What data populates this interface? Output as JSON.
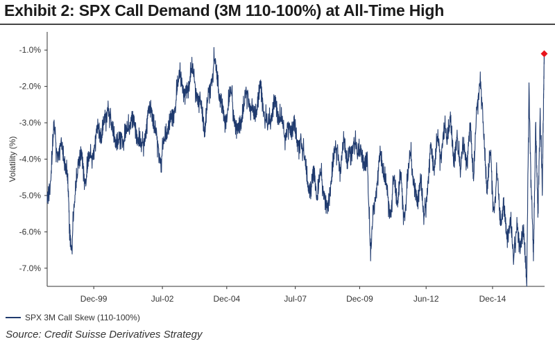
{
  "title": "Exhibit 2: SPX Call Demand (3M 110-100%) at All-Time High",
  "source": "Source: Credit Suisse Derivatives Strategy",
  "colors": {
    "series": "#1f3a6e",
    "marker": "#e8141c",
    "axis": "#333333"
  },
  "chart_data": {
    "type": "line",
    "ylabel": "Volatility (%)",
    "ylim": [
      -7.5,
      -0.5
    ],
    "yticks": [
      -1.0,
      -2.0,
      -3.0,
      -4.0,
      -5.0,
      -6.0,
      -7.0
    ],
    "ytick_labels": [
      "-1.0%",
      "-2.0%",
      "-3.0%",
      "-4.0%",
      "-5.0%",
      "-6.0%",
      "-7.0%"
    ],
    "xlim": [
      "1998-03-01",
      "2016-11-15"
    ],
    "xticks": [
      "1999-12-01",
      "2002-07-01",
      "2004-12-01",
      "2007-07-01",
      "2009-12-01",
      "2012-06-01",
      "2014-12-01"
    ],
    "xtick_labels": [
      "Dec-99",
      "Jul-02",
      "Dec-04",
      "Jul-07",
      "Dec-09",
      "Jun-12",
      "Dec-14"
    ],
    "grid": false,
    "legend_position": "bottom-left",
    "series": [
      {
        "name": "SPX 3M Call Skew (110-100%)",
        "points": [
          [
            "1998-03-01",
            -5.2
          ],
          [
            "1998-04-15",
            -4.6
          ],
          [
            "1998-06-01",
            -3.2
          ],
          [
            "1998-07-15",
            -3.8
          ],
          [
            "1998-09-01",
            -3.6
          ],
          [
            "1998-10-15",
            -4.0
          ],
          [
            "1998-12-01",
            -4.3
          ],
          [
            "1999-01-01",
            -5.8
          ],
          [
            "1999-02-01",
            -6.4
          ],
          [
            "1999-03-15",
            -5.2
          ],
          [
            "1999-05-01",
            -4.0
          ],
          [
            "1999-06-15",
            -3.9
          ],
          [
            "1999-08-01",
            -4.6
          ],
          [
            "1999-09-15",
            -4.2
          ],
          [
            "1999-11-01",
            -3.9
          ],
          [
            "1999-12-15",
            -3.6
          ],
          [
            "2000-02-01",
            -3.1
          ],
          [
            "2000-03-15",
            -3.4
          ],
          [
            "2000-05-01",
            -3.0
          ],
          [
            "2000-06-15",
            -2.4
          ],
          [
            "2000-08-01",
            -3.2
          ],
          [
            "2000-09-15",
            -3.4
          ],
          [
            "2000-11-01",
            -3.6
          ],
          [
            "2000-12-15",
            -3.3
          ],
          [
            "2001-02-01",
            -3.5
          ],
          [
            "2001-03-15",
            -3.2
          ],
          [
            "2001-05-01",
            -2.8
          ],
          [
            "2001-06-15",
            -3.1
          ],
          [
            "2001-08-01",
            -3.4
          ],
          [
            "2001-09-15",
            -3.8
          ],
          [
            "2001-11-01",
            -3.3
          ],
          [
            "2001-12-15",
            -2.8
          ],
          [
            "2002-02-01",
            -2.6
          ],
          [
            "2002-03-15",
            -3.2
          ],
          [
            "2002-05-01",
            -3.6
          ],
          [
            "2002-06-15",
            -4.0
          ],
          [
            "2002-08-01",
            -3.5
          ],
          [
            "2002-09-15",
            -3.1
          ],
          [
            "2002-11-01",
            -2.9
          ],
          [
            "2002-12-15",
            -2.6
          ],
          [
            "2003-02-01",
            -2.0
          ],
          [
            "2003-03-15",
            -1.6
          ],
          [
            "2003-05-01",
            -2.3
          ],
          [
            "2003-06-15",
            -2.1
          ],
          [
            "2003-08-01",
            -1.5
          ],
          [
            "2003-09-15",
            -1.9
          ],
          [
            "2003-11-01",
            -2.2
          ],
          [
            "2003-12-15",
            -2.6
          ],
          [
            "2004-02-01",
            -3.2
          ],
          [
            "2004-03-15",
            -2.4
          ],
          [
            "2004-05-01",
            -1.8
          ],
          [
            "2004-06-15",
            -1.3
          ],
          [
            "2004-08-01",
            -2.0
          ],
          [
            "2004-09-15",
            -2.4
          ],
          [
            "2004-11-01",
            -3.0
          ],
          [
            "2004-12-15",
            -2.6
          ],
          [
            "2005-02-01",
            -2.2
          ],
          [
            "2005-03-15",
            -2.8
          ],
          [
            "2005-05-01",
            -3.3
          ],
          [
            "2005-06-15",
            -2.9
          ],
          [
            "2005-08-01",
            -2.5
          ],
          [
            "2005-09-15",
            -2.1
          ],
          [
            "2005-11-01",
            -2.6
          ],
          [
            "2005-12-15",
            -2.9
          ],
          [
            "2006-02-01",
            -2.4
          ],
          [
            "2006-03-15",
            -2.0
          ],
          [
            "2006-05-01",
            -2.7
          ],
          [
            "2006-06-15",
            -3.2
          ],
          [
            "2006-08-01",
            -2.8
          ],
          [
            "2006-09-15",
            -2.4
          ],
          [
            "2006-11-01",
            -2.7
          ],
          [
            "2006-12-15",
            -2.9
          ],
          [
            "2007-02-01",
            -3.4
          ],
          [
            "2007-03-15",
            -3.0
          ],
          [
            "2007-05-01",
            -3.4
          ],
          [
            "2007-06-15",
            -2.9
          ],
          [
            "2007-08-01",
            -3.8
          ],
          [
            "2007-09-15",
            -3.3
          ],
          [
            "2007-11-01",
            -4.0
          ],
          [
            "2007-12-15",
            -4.6
          ],
          [
            "2008-02-01",
            -4.9
          ],
          [
            "2008-03-15",
            -4.2
          ],
          [
            "2008-05-01",
            -5.1
          ],
          [
            "2008-06-15",
            -4.4
          ],
          [
            "2008-08-01",
            -4.9
          ],
          [
            "2008-09-15",
            -5.5
          ],
          [
            "2008-11-01",
            -4.6
          ],
          [
            "2008-12-15",
            -4.0
          ],
          [
            "2009-02-01",
            -3.6
          ],
          [
            "2009-03-15",
            -4.4
          ],
          [
            "2009-05-01",
            -3.4
          ],
          [
            "2009-06-15",
            -4.1
          ],
          [
            "2009-08-01",
            -3.8
          ],
          [
            "2009-09-15",
            -3.4
          ],
          [
            "2009-11-01",
            -4.0
          ],
          [
            "2009-12-15",
            -3.6
          ],
          [
            "2010-02-01",
            -4.3
          ],
          [
            "2010-03-15",
            -3.8
          ],
          [
            "2010-05-01",
            -6.8
          ],
          [
            "2010-06-15",
            -5.2
          ],
          [
            "2010-08-01",
            -4.6
          ],
          [
            "2010-09-15",
            -3.8
          ],
          [
            "2010-11-01",
            -4.4
          ],
          [
            "2010-12-15",
            -5.0
          ],
          [
            "2011-02-01",
            -5.4
          ],
          [
            "2011-03-15",
            -4.6
          ],
          [
            "2011-05-01",
            -5.2
          ],
          [
            "2011-06-15",
            -4.4
          ],
          [
            "2011-08-01",
            -5.6
          ],
          [
            "2011-09-15",
            -4.8
          ],
          [
            "2011-11-01",
            -3.8
          ],
          [
            "2011-12-15",
            -4.6
          ],
          [
            "2012-02-01",
            -5.3
          ],
          [
            "2012-03-15",
            -4.4
          ],
          [
            "2012-05-01",
            -5.8
          ],
          [
            "2012-06-15",
            -4.8
          ],
          [
            "2012-08-01",
            -3.7
          ],
          [
            "2012-09-15",
            -4.3
          ],
          [
            "2012-11-01",
            -3.4
          ],
          [
            "2012-12-15",
            -4.0
          ],
          [
            "2013-02-01",
            -3.0
          ],
          [
            "2013-03-15",
            -3.6
          ],
          [
            "2013-05-01",
            -2.7
          ],
          [
            "2013-06-15",
            -4.2
          ],
          [
            "2013-08-01",
            -3.2
          ],
          [
            "2013-09-15",
            -4.5
          ],
          [
            "2013-11-01",
            -3.4
          ],
          [
            "2013-12-15",
            -4.2
          ],
          [
            "2014-02-01",
            -3.0
          ],
          [
            "2014-03-15",
            -4.6
          ],
          [
            "2014-05-01",
            -2.6
          ],
          [
            "2014-06-15",
            -1.6
          ],
          [
            "2014-08-01",
            -3.4
          ],
          [
            "2014-09-15",
            -4.8
          ],
          [
            "2014-11-01",
            -3.8
          ],
          [
            "2014-12-15",
            -5.4
          ],
          [
            "2015-02-01",
            -4.4
          ],
          [
            "2015-03-15",
            -5.8
          ],
          [
            "2015-05-01",
            -5.2
          ],
          [
            "2015-06-15",
            -6.2
          ],
          [
            "2015-08-01",
            -5.6
          ],
          [
            "2015-09-15",
            -6.9
          ],
          [
            "2015-11-01",
            -5.6
          ],
          [
            "2015-12-15",
            -6.6
          ],
          [
            "2016-02-01",
            -5.8
          ],
          [
            "2016-03-15",
            -7.5
          ],
          [
            "2016-04-15",
            -1.9
          ],
          [
            "2016-05-15",
            -4.8
          ],
          [
            "2016-06-15",
            -6.8
          ],
          [
            "2016-07-15",
            -3.0
          ],
          [
            "2016-08-15",
            -5.6
          ],
          [
            "2016-09-15",
            -2.6
          ],
          [
            "2016-10-15",
            -5.0
          ],
          [
            "2016-11-01",
            -2.2
          ],
          [
            "2016-11-10",
            -1.1
          ]
        ]
      }
    ],
    "annotations": [
      {
        "type": "marker",
        "shape": "diamond",
        "x": "2016-11-10",
        "y": -1.1
      }
    ]
  }
}
